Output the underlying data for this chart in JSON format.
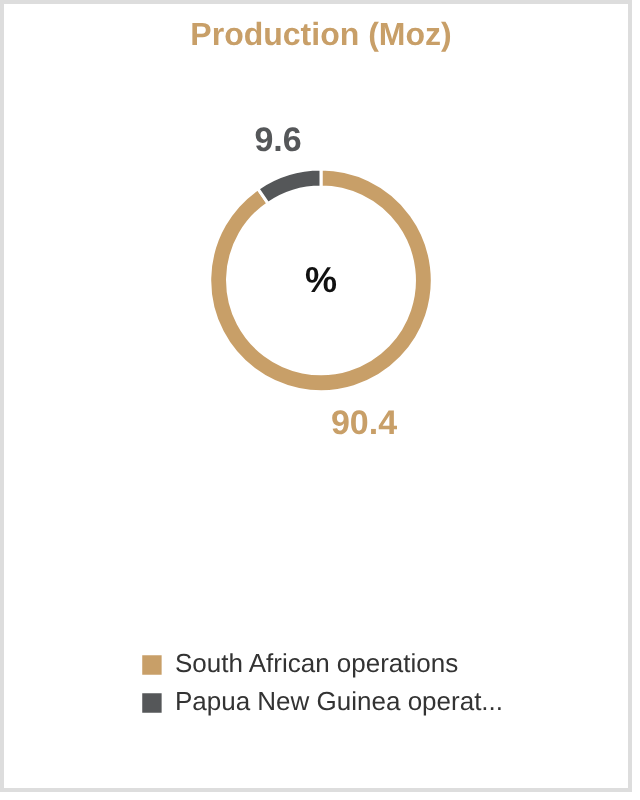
{
  "chart_data": {
    "type": "donut",
    "title": "Production (Moz)",
    "categories": [
      "South African operations",
      "Papua New Guinea operat..."
    ],
    "values": [
      90.4,
      9.6
    ],
    "colors": [
      "#c89f68",
      "#555759"
    ],
    "data_labels": true,
    "annotations": [
      "%"
    ],
    "legend": "bottom"
  }
}
